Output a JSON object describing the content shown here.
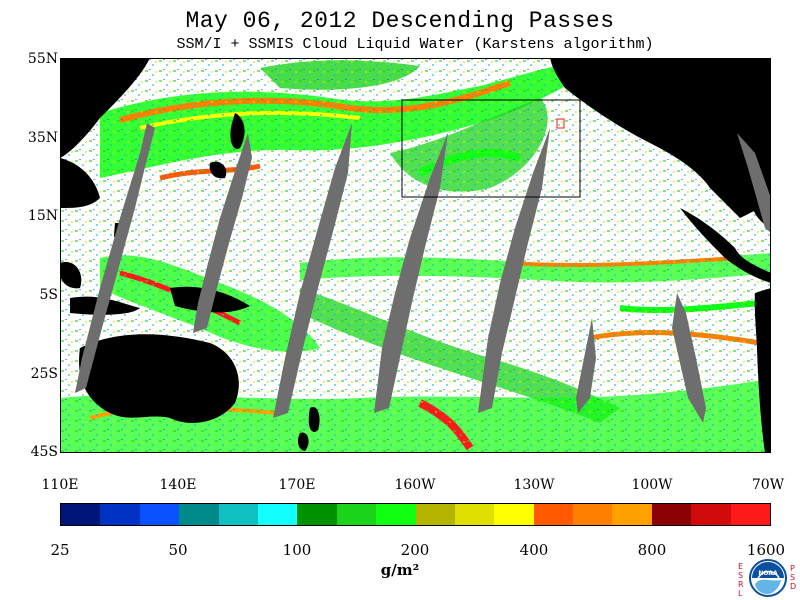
{
  "title": "May 06, 2012  Descending Passes",
  "subtitle": "SSM/I + SSMIS Cloud Liquid Water (Karstens algorithm)",
  "latitude_labels": [
    "55N",
    "35N",
    "15N",
    "5S",
    "25S",
    "45S"
  ],
  "longitude_labels": [
    "110E",
    "140E",
    "170E",
    "160W",
    "130W",
    "100W",
    "70W"
  ],
  "colorbar": {
    "colors": [
      "#00157a",
      "#0033c4",
      "#0a52ff",
      "#008b8b",
      "#12c2c2",
      "#14ffff",
      "#009300",
      "#1ad41a",
      "#11ff11",
      "#b4b400",
      "#e0e000",
      "#ffff00",
      "#ff5a00",
      "#ff8000",
      "#ffa000",
      "#8b0000",
      "#d10b0b",
      "#ff1a1a"
    ],
    "tick_labels": [
      "25",
      "50",
      "100",
      "200",
      "400",
      "800",
      "1600"
    ],
    "units": "g/m²"
  },
  "map_colors": {
    "land": "#000000",
    "no_data": "#6e6e6e",
    "ocean_clear": "#ffffff",
    "coast_outline": "#ffffff"
  },
  "logo": {
    "left_letters": [
      "E",
      "S",
      "R",
      "L"
    ],
    "right_letters": [
      "P",
      "S",
      "D"
    ],
    "center_text": "NOAA"
  }
}
